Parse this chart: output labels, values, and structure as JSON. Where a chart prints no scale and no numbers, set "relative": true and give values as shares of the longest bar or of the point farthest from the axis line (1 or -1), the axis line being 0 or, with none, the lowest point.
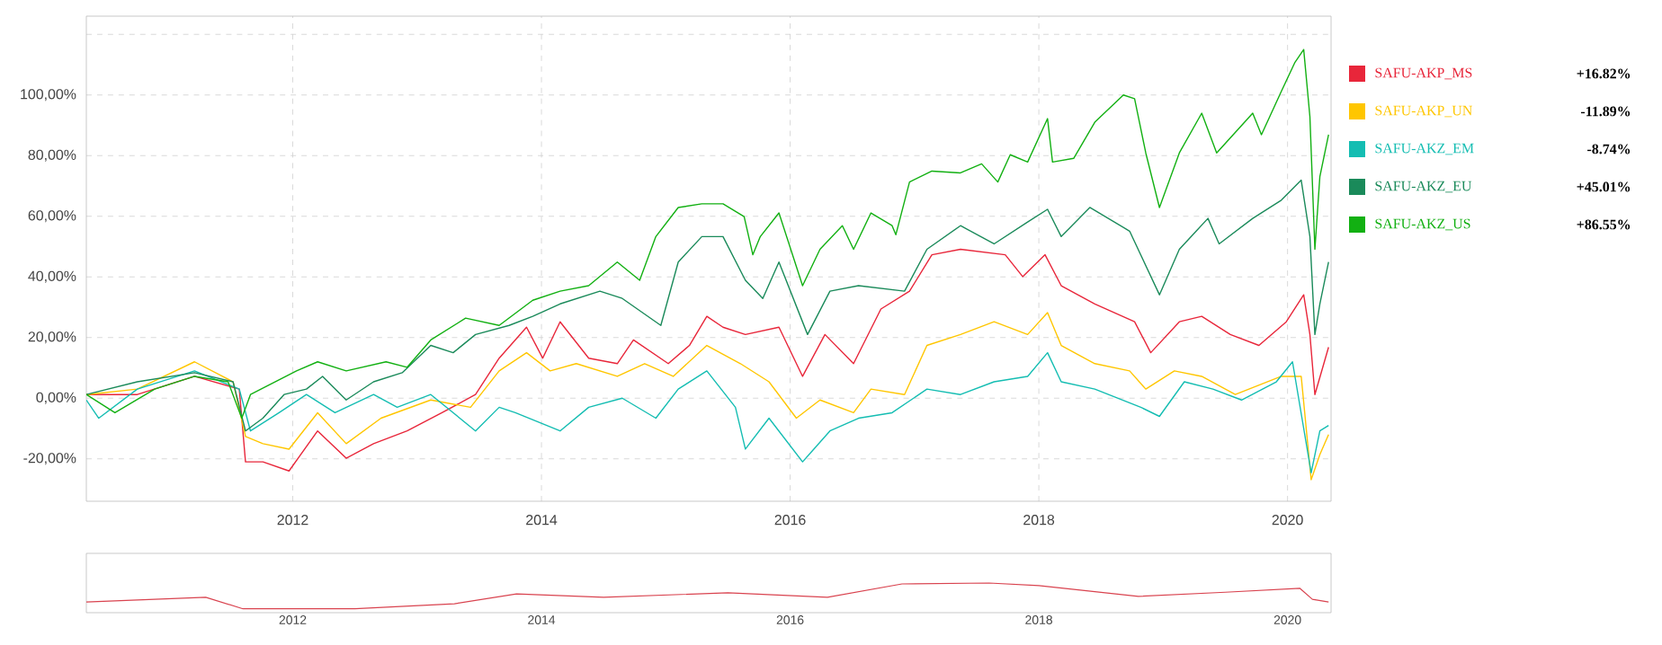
{
  "chart_data": [
    {
      "type": "line",
      "xlim": [
        2010.34,
        2020.35
      ],
      "ylim": [
        -34,
        126
      ],
      "xticks": [
        2012,
        2014,
        2016,
        2018,
        2020
      ],
      "yticks": [
        {
          "value": -20,
          "label": "-20,00%"
        },
        {
          "value": 0,
          "label": "0,00%"
        },
        {
          "value": 20,
          "label": "20,00%"
        },
        {
          "value": 40,
          "label": "40,00%"
        },
        {
          "value": 60,
          "label": "60,00%"
        },
        {
          "value": 80,
          "label": "80,00%"
        },
        {
          "value": 100,
          "label": "100,00%"
        },
        {
          "value": 120,
          "label": null
        }
      ],
      "grid": true,
      "legend": "right",
      "annotations": [
        "+16.82%",
        "-11.89%",
        "-8.74%",
        "+45.01%",
        "+86.55%"
      ],
      "series": [
        {
          "name": "SAFU-AKP_MS",
          "color": "#e8263a",
          "x": [
            2010.34,
            2010.75,
            2011.21,
            2011.57,
            2011.62,
            2011.76,
            2011.97,
            2012.2,
            2012.43,
            2012.65,
            2012.92,
            2013.2,
            2013.47,
            2013.66,
            2013.88,
            2014.01,
            2014.15,
            2014.38,
            2014.61,
            2014.74,
            2015.02,
            2015.19,
            2015.33,
            2015.46,
            2015.64,
            2015.91,
            2016.1,
            2016.28,
            2016.51,
            2016.73,
            2016.96,
            2017.14,
            2017.37,
            2017.73,
            2017.87,
            2018.05,
            2018.18,
            2018.45,
            2018.77,
            2018.9,
            2019.13,
            2019.31,
            2019.54,
            2019.77,
            2019.99,
            2020.13,
            2020.18,
            2020.22,
            2020.33
          ],
          "values": [
            1.2,
            1.2,
            7.2,
            3.0,
            -21.0,
            -21.0,
            -24.0,
            -10.8,
            -19.8,
            -15.0,
            -10.8,
            -4.8,
            1.2,
            13.2,
            23.4,
            13.2,
            25.2,
            13.2,
            11.4,
            19.2,
            11.4,
            17.4,
            27.0,
            23.4,
            21.0,
            23.4,
            7.2,
            21.0,
            11.4,
            29.4,
            35.3,
            47.3,
            49.1,
            47.3,
            40.1,
            47.3,
            37.1,
            31.1,
            25.2,
            15.0,
            25.2,
            27.0,
            21.0,
            17.4,
            25.2,
            34.1,
            21.0,
            1.2,
            16.8
          ]
        },
        {
          "name": "SAFU-AKP_UN",
          "color": "#ffc600",
          "x": [
            2010.34,
            2010.75,
            2011.21,
            2011.52,
            2011.62,
            2011.76,
            2011.97,
            2012.2,
            2012.43,
            2012.71,
            2013.11,
            2013.43,
            2013.66,
            2013.88,
            2014.07,
            2014.28,
            2014.61,
            2014.83,
            2015.06,
            2015.33,
            2015.6,
            2015.83,
            2016.05,
            2016.24,
            2016.51,
            2016.65,
            2016.92,
            2017.1,
            2017.37,
            2017.64,
            2017.91,
            2018.07,
            2018.18,
            2018.45,
            2018.73,
            2018.86,
            2019.09,
            2019.31,
            2019.58,
            2019.95,
            2020.11,
            2020.19,
            2020.26,
            2020.33
          ],
          "values": [
            1.2,
            3.0,
            12.0,
            5.4,
            -12.6,
            -15.0,
            -16.8,
            -4.8,
            -15.0,
            -6.6,
            -0.6,
            -3.0,
            9.0,
            15.0,
            9.0,
            11.4,
            7.2,
            11.4,
            7.2,
            17.4,
            11.4,
            5.4,
            -6.6,
            -0.6,
            -4.8,
            3.0,
            1.2,
            17.4,
            21.0,
            25.2,
            21.0,
            28.2,
            17.4,
            11.4,
            9.0,
            3.0,
            9.0,
            7.2,
            1.2,
            7.2,
            7.2,
            -26.9,
            -18.6,
            -12.0
          ]
        },
        {
          "name": "SAFU-AKZ_EM",
          "color": "#14bdb2",
          "x": [
            2010.34,
            2010.44,
            2010.75,
            2011.21,
            2011.57,
            2011.66,
            2011.89,
            2012.11,
            2012.34,
            2012.65,
            2012.84,
            2013.11,
            2013.47,
            2013.66,
            2013.79,
            2014.15,
            2014.38,
            2014.65,
            2014.92,
            2015.1,
            2015.33,
            2015.56,
            2015.64,
            2015.83,
            2016.1,
            2016.32,
            2016.55,
            2016.82,
            2017.1,
            2017.37,
            2017.64,
            2017.91,
            2018.07,
            2018.18,
            2018.45,
            2018.82,
            2018.97,
            2019.17,
            2019.4,
            2019.63,
            2019.91,
            2020.04,
            2020.19,
            2020.26,
            2020.33
          ],
          "values": [
            -0.6,
            -6.6,
            3.0,
            9.0,
            3.0,
            -10.8,
            -4.8,
            1.2,
            -4.8,
            1.2,
            -3.0,
            1.2,
            -10.8,
            -3.0,
            -4.8,
            -10.8,
            -3.0,
            0.0,
            -6.6,
            3.0,
            9.0,
            -3.0,
            -16.8,
            -6.6,
            -21.0,
            -10.8,
            -6.6,
            -4.8,
            3.0,
            1.2,
            5.4,
            7.2,
            15.0,
            5.4,
            3.0,
            -3.0,
            -6.0,
            5.4,
            3.0,
            -0.6,
            5.4,
            12.0,
            -24.6,
            -10.8,
            -9.0
          ]
        },
        {
          "name": "SAFU-AKZ_EU",
          "color": "#1a8a5a",
          "x": [
            2010.34,
            2010.75,
            2011.21,
            2011.52,
            2011.62,
            2011.76,
            2011.93,
            2012.11,
            2012.24,
            2012.43,
            2012.65,
            2012.88,
            2013.11,
            2013.29,
            2013.47,
            2013.74,
            2013.93,
            2014.15,
            2014.47,
            2014.65,
            2014.96,
            2015.1,
            2015.29,
            2015.46,
            2015.64,
            2015.78,
            2015.91,
            2016.14,
            2016.32,
            2016.55,
            2016.92,
            2017.1,
            2017.37,
            2017.64,
            2017.91,
            2018.07,
            2018.18,
            2018.41,
            2018.73,
            2018.97,
            2019.13,
            2019.36,
            2019.45,
            2019.72,
            2019.95,
            2020.11,
            2020.18,
            2020.22,
            2020.26,
            2020.33
          ],
          "values": [
            1.2,
            5.4,
            8.4,
            5.4,
            -10.8,
            -6.6,
            1.2,
            3.0,
            7.2,
            -0.6,
            5.4,
            8.4,
            17.4,
            15.0,
            21.0,
            24.0,
            27.0,
            31.1,
            35.3,
            32.9,
            24.0,
            44.9,
            53.3,
            53.3,
            38.9,
            32.9,
            44.9,
            21.0,
            35.3,
            37.1,
            35.3,
            49.1,
            56.9,
            50.9,
            58.1,
            62.3,
            53.3,
            62.9,
            55.1,
            34.1,
            49.1,
            59.3,
            50.9,
            59.3,
            65.3,
            71.9,
            53.3,
            21.0,
            31.1,
            44.9
          ]
        },
        {
          "name": "SAFU-AKZ_US",
          "color": "#12b012",
          "x": [
            2010.34,
            2010.57,
            2010.89,
            2011.21,
            2011.48,
            2011.59,
            2011.66,
            2012.03,
            2012.2,
            2012.43,
            2012.75,
            2012.92,
            2013.11,
            2013.39,
            2013.66,
            2013.93,
            2014.15,
            2014.38,
            2014.61,
            2014.79,
            2014.92,
            2015.1,
            2015.29,
            2015.46,
            2015.63,
            2015.7,
            2015.76,
            2015.91,
            2016.1,
            2016.24,
            2016.42,
            2016.51,
            2016.65,
            2016.82,
            2016.85,
            2016.96,
            2017.14,
            2017.37,
            2017.54,
            2017.67,
            2017.77,
            2017.91,
            2018.07,
            2018.11,
            2018.28,
            2018.45,
            2018.68,
            2018.77,
            2018.86,
            2018.97,
            2019.13,
            2019.31,
            2019.43,
            2019.72,
            2019.79,
            2019.95,
            2020.06,
            2020.13,
            2020.18,
            2020.22,
            2020.26,
            2020.33
          ],
          "values": [
            1.2,
            -4.8,
            3.0,
            7.2,
            5.4,
            -6.6,
            1.2,
            9.0,
            12.0,
            9.0,
            12.0,
            10.2,
            19.2,
            26.4,
            24.0,
            32.3,
            35.3,
            37.1,
            44.9,
            38.9,
            53.3,
            62.9,
            64.1,
            64.1,
            59.9,
            47.3,
            53.3,
            61.1,
            37.1,
            49.1,
            56.9,
            49.1,
            61.1,
            56.9,
            53.9,
            71.3,
            74.9,
            74.3,
            77.3,
            71.3,
            80.3,
            77.9,
            92.2,
            77.9,
            79.1,
            91.0,
            100.0,
            98.8,
            80.9,
            62.9,
            80.9,
            94.0,
            80.9,
            94.0,
            86.9,
            101.2,
            110.8,
            115.0,
            92.8,
            49.1,
            73.1,
            86.9
          ]
        }
      ]
    },
    {
      "type": "line",
      "relative": true,
      "color": "#d9434f",
      "xlim": [
        2010.34,
        2020.35
      ],
      "xticks": [
        2012,
        2014,
        2016,
        2018,
        2020
      ],
      "x": [
        2010.34,
        2011.3,
        2011.6,
        2012.5,
        2013.3,
        2013.8,
        2014.5,
        2015.5,
        2016.3,
        2016.9,
        2017.6,
        2018.0,
        2018.8,
        2019.5,
        2020.1,
        2020.2,
        2020.33
      ],
      "values": [
        0.36,
        0.52,
        0.13,
        0.13,
        0.3,
        0.63,
        0.52,
        0.67,
        0.52,
        0.97,
        1.0,
        0.91,
        0.55,
        0.69,
        0.82,
        0.45,
        0.36
      ]
    }
  ]
}
